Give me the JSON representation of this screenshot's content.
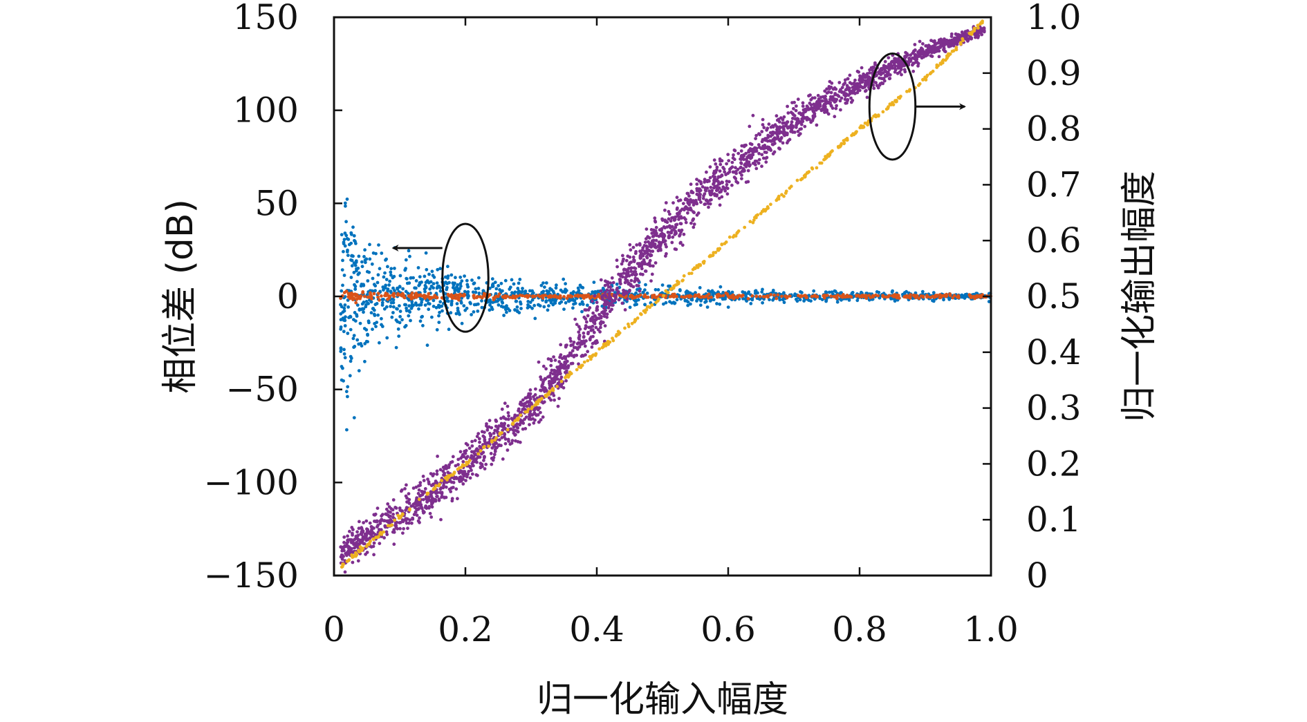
{
  "chart_data": {
    "type": "scatter",
    "title": "",
    "xlabel": "归一化输入幅度",
    "ylabel_left": "相位差 (dB)",
    "ylabel_right": "归一化输出幅度",
    "xlim": [
      0,
      1.0
    ],
    "ylim_left": [
      -150,
      150
    ],
    "ylim_right": [
      0,
      1.0
    ],
    "grid": false,
    "x_ticks": [
      "0",
      "0.2",
      "0.4",
      "0.6",
      "0.8",
      "1.0"
    ],
    "y_left_ticks": [
      "150",
      "100",
      "50",
      "0",
      "−50",
      "−100",
      "−150"
    ],
    "y_right_ticks": [
      "1.0",
      "0.9",
      "0.8",
      "0.7",
      "0.6",
      "0.5",
      "0.4",
      "0.3",
      "0.2",
      "0.1",
      "0"
    ],
    "series": [
      {
        "axis": "left",
        "color": "#0072BD",
        "x": [
          0.01,
          0.02,
          0.03,
          0.04,
          0.05,
          0.06,
          0.08,
          0.1,
          0.12,
          0.15,
          0.18,
          0.2,
          0.25,
          0.3,
          0.35,
          0.4,
          0.45,
          0.5,
          0.55,
          0.6,
          0.7,
          0.8,
          0.9,
          1.0
        ],
        "y": [
          0,
          0,
          0,
          0,
          0,
          0,
          0,
          0,
          0,
          0,
          0,
          0,
          0,
          0,
          0,
          0,
          0,
          0,
          0,
          0,
          0,
          0,
          0,
          0
        ],
        "spread": [
          45,
          60,
          55,
          40,
          32,
          28,
          24,
          20,
          17,
          15,
          13,
          12,
          10,
          8,
          7,
          6,
          5,
          4.5,
          4,
          3.5,
          3,
          2.5,
          2,
          1.5
        ]
      },
      {
        "axis": "left",
        "color": "#D95319",
        "x": [
          0.01,
          0.05,
          0.1,
          0.2,
          0.3,
          0.4,
          0.5,
          0.6,
          0.7,
          0.8,
          0.9,
          1.0
        ],
        "y": [
          0,
          0,
          0,
          0,
          0,
          0,
          0,
          0,
          0,
          0,
          0,
          0
        ],
        "spread": [
          4,
          2.5,
          2,
          1.5,
          1,
          1,
          1,
          1,
          1,
          1,
          1,
          1
        ]
      },
      {
        "axis": "right",
        "color": "#7E2F8E",
        "x": [
          0.01,
          0.05,
          0.1,
          0.15,
          0.2,
          0.25,
          0.3,
          0.35,
          0.4,
          0.45,
          0.5,
          0.55,
          0.6,
          0.65,
          0.7,
          0.75,
          0.8,
          0.85,
          0.9,
          0.95,
          0.99
        ],
        "y": [
          0.04,
          0.07,
          0.11,
          0.15,
          0.2,
          0.25,
          0.3,
          0.37,
          0.46,
          0.54,
          0.61,
          0.67,
          0.72,
          0.77,
          0.81,
          0.85,
          0.88,
          0.91,
          0.94,
          0.96,
          0.98
        ],
        "spread": [
          0.03,
          0.03,
          0.04,
          0.04,
          0.04,
          0.04,
          0.04,
          0.04,
          0.045,
          0.045,
          0.04,
          0.04,
          0.035,
          0.035,
          0.03,
          0.025,
          0.02,
          0.02,
          0.015,
          0.01,
          0.01
        ]
      },
      {
        "axis": "right",
        "color": "#EDB120",
        "x": [
          0.01,
          0.1,
          0.2,
          0.3,
          0.4,
          0.5,
          0.6,
          0.7,
          0.8,
          0.9,
          0.99
        ],
        "y": [
          0.015,
          0.105,
          0.2,
          0.3,
          0.4,
          0.5,
          0.6,
          0.7,
          0.8,
          0.89,
          0.995
        ],
        "spread": [
          0.004,
          0.004,
          0.004,
          0.004,
          0.004,
          0.004,
          0.004,
          0.004,
          0.004,
          0.004,
          0.004
        ]
      }
    ],
    "annotations": [
      {
        "type": "ellipse",
        "target_axis": "left",
        "cx": 0.2,
        "cy": 10,
        "rx": 0.035,
        "ry": 29,
        "arrow_to_x": 0.09,
        "arrow_y": 26
      },
      {
        "type": "ellipse",
        "target_axis": "right",
        "cx": 0.85,
        "cy": 0.84,
        "rx": 0.035,
        "ry": 0.095,
        "arrow_to_x": 0.96,
        "arrow_y": 0.84
      }
    ]
  }
}
